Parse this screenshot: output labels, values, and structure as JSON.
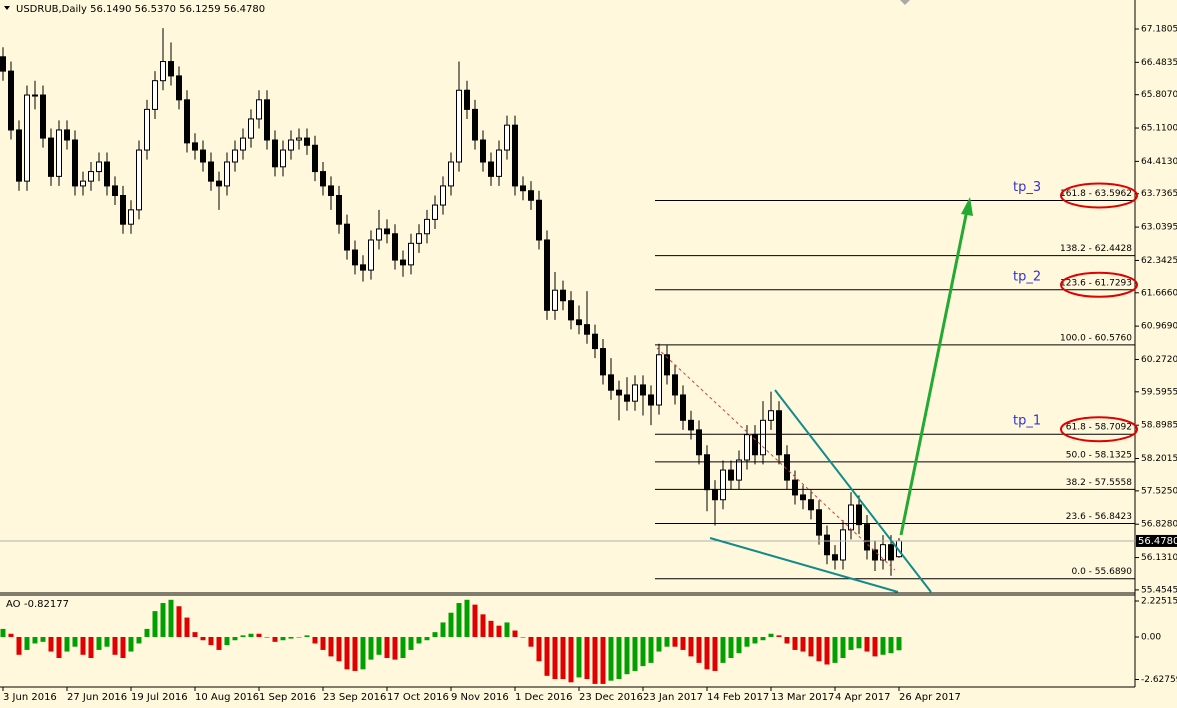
{
  "chart_data": [
    {
      "type": "candlestick",
      "title": "USDRUB,Daily  56.1490 56.5370 56.1259 56.4780",
      "categories": [
        "3 Jun 2016",
        null,
        null,
        null,
        null,
        null,
        null,
        null,
        "27 Jun 2016",
        null,
        null,
        null,
        null,
        null,
        null,
        null,
        "19 Jul 2016",
        null,
        null,
        null,
        null,
        null,
        null,
        null,
        "10 Aug 2016",
        null,
        null,
        null,
        null,
        null,
        null,
        null,
        "1 Sep 2016",
        null,
        null,
        null,
        null,
        null,
        null,
        null,
        "23 Sep 2016",
        null,
        null,
        null,
        null,
        null,
        null,
        null,
        "17 Oct 2016",
        null,
        null,
        null,
        null,
        null,
        null,
        null,
        "9 Nov 2016",
        null,
        null,
        null,
        null,
        null,
        null,
        null,
        "1 Dec 2016",
        null,
        null,
        null,
        null,
        null,
        null,
        null,
        "23 Dec 2016",
        null,
        null,
        null,
        null,
        null,
        null,
        null,
        "23 Jan 2017",
        null,
        null,
        null,
        null,
        null,
        null,
        null,
        "14 Feb 2017",
        null,
        null,
        null,
        null,
        null,
        null,
        null,
        "13 Mar 2017",
        null,
        null,
        null,
        null,
        null,
        null,
        null,
        "4 Apr 2017",
        null,
        null,
        null,
        null,
        null,
        null,
        null,
        "26 Apr 2017"
      ],
      "ohlc": [
        [
          66.6,
          66.8,
          66.1,
          66.3
        ],
        [
          66.3,
          66.5,
          64.87,
          65.07
        ],
        [
          65.07,
          65.27,
          63.8,
          64.0
        ],
        [
          64.0,
          66.0,
          63.8,
          65.8
        ],
        [
          65.8,
          66.1,
          65.5,
          65.8
        ],
        [
          65.8,
          66.0,
          64.7,
          64.9
        ],
        [
          64.9,
          65.1,
          63.9,
          64.1
        ],
        [
          64.1,
          65.27,
          63.9,
          65.07
        ],
        [
          65.07,
          65.27,
          64.66,
          64.86
        ],
        [
          64.86,
          65.06,
          63.7,
          63.9
        ],
        [
          63.9,
          64.2,
          63.7,
          64.0
        ],
        [
          64.0,
          64.4,
          63.8,
          64.2
        ],
        [
          64.2,
          64.6,
          64.0,
          64.4
        ],
        [
          64.4,
          64.6,
          63.7,
          63.9
        ],
        [
          63.9,
          64.1,
          63.5,
          63.7
        ],
        [
          63.7,
          63.9,
          62.9,
          63.1
        ],
        [
          63.1,
          63.6,
          62.9,
          63.4
        ],
        [
          63.4,
          64.85,
          63.2,
          64.65
        ],
        [
          64.65,
          65.7,
          64.45,
          65.5
        ],
        [
          65.5,
          66.3,
          65.3,
          66.1
        ],
        [
          66.1,
          67.2,
          65.9,
          66.5
        ],
        [
          66.5,
          66.9,
          66.0,
          66.2
        ],
        [
          66.2,
          66.4,
          65.5,
          65.7
        ],
        [
          65.7,
          65.9,
          64.6,
          64.8
        ],
        [
          64.8,
          65.0,
          64.45,
          64.65
        ],
        [
          64.65,
          64.85,
          64.2,
          64.4
        ],
        [
          64.4,
          64.6,
          63.8,
          64.0
        ],
        [
          64.0,
          64.2,
          63.4,
          63.9
        ],
        [
          63.9,
          64.6,
          63.7,
          64.4
        ],
        [
          64.4,
          64.85,
          64.2,
          64.65
        ],
        [
          64.65,
          65.1,
          64.45,
          64.9
        ],
        [
          64.9,
          65.5,
          64.7,
          65.3
        ],
        [
          65.3,
          65.9,
          65.1,
          65.7
        ],
        [
          65.7,
          65.9,
          64.66,
          64.86
        ],
        [
          64.86,
          65.06,
          64.1,
          64.3
        ],
        [
          64.3,
          64.85,
          64.1,
          64.65
        ],
        [
          64.65,
          65.06,
          64.45,
          64.86
        ],
        [
          64.86,
          65.1,
          64.66,
          64.9
        ],
        [
          64.9,
          65.1,
          64.55,
          64.75
        ],
        [
          64.75,
          64.95,
          64.0,
          64.2
        ],
        [
          64.2,
          64.4,
          63.7,
          63.9
        ],
        [
          63.9,
          64.1,
          63.4,
          63.7
        ],
        [
          63.7,
          63.9,
          62.9,
          63.1
        ],
        [
          63.1,
          63.3,
          62.36,
          62.56
        ],
        [
          62.56,
          62.76,
          62.05,
          62.25
        ],
        [
          62.25,
          62.45,
          61.9,
          62.14
        ],
        [
          62.14,
          62.97,
          61.94,
          62.77
        ],
        [
          62.77,
          63.4,
          62.57,
          63.0
        ],
        [
          63.0,
          63.2,
          62.7,
          62.9
        ],
        [
          62.9,
          63.1,
          62.15,
          62.35
        ],
        [
          62.35,
          62.55,
          62.0,
          62.25
        ],
        [
          62.25,
          62.9,
          62.05,
          62.7
        ],
        [
          62.7,
          63.1,
          62.5,
          62.9
        ],
        [
          62.9,
          63.4,
          62.7,
          63.2
        ],
        [
          63.2,
          63.7,
          63.0,
          63.5
        ],
        [
          63.5,
          64.1,
          63.3,
          63.9
        ],
        [
          63.9,
          64.6,
          63.7,
          64.4
        ],
        [
          64.4,
          66.5,
          64.2,
          65.9
        ],
        [
          65.9,
          66.1,
          65.3,
          65.5
        ],
        [
          65.5,
          65.7,
          64.66,
          64.86
        ],
        [
          64.86,
          65.06,
          64.2,
          64.4
        ],
        [
          64.4,
          64.6,
          63.9,
          64.1
        ],
        [
          64.1,
          64.85,
          63.9,
          64.65
        ],
        [
          64.65,
          65.37,
          64.45,
          65.17
        ],
        [
          65.17,
          65.37,
          63.7,
          63.9
        ],
        [
          63.9,
          64.1,
          63.6,
          63.8
        ],
        [
          63.8,
          64.0,
          63.4,
          63.6
        ],
        [
          63.6,
          63.8,
          62.57,
          62.77
        ],
        [
          62.77,
          62.97,
          61.1,
          61.3
        ],
        [
          61.3,
          62.1,
          61.1,
          61.72
        ],
        [
          61.72,
          61.92,
          61.3,
          61.5
        ],
        [
          61.5,
          61.7,
          60.9,
          61.1
        ],
        [
          61.1,
          61.4,
          60.8,
          61.0
        ],
        [
          61.0,
          61.7,
          60.6,
          60.8
        ],
        [
          60.8,
          61.0,
          60.3,
          60.5
        ],
        [
          60.5,
          60.7,
          59.75,
          59.95
        ],
        [
          59.95,
          60.3,
          59.43,
          59.63
        ],
        [
          59.63,
          59.83,
          59.0,
          59.53
        ],
        [
          59.53,
          59.9,
          59.2,
          59.4
        ],
        [
          59.4,
          59.94,
          59.2,
          59.74
        ],
        [
          59.74,
          59.94,
          59.1,
          59.53
        ],
        [
          59.53,
          59.73,
          58.9,
          59.32
        ],
        [
          59.32,
          60.6,
          59.12,
          60.37
        ],
        [
          60.37,
          60.57,
          59.75,
          59.95
        ],
        [
          59.95,
          60.15,
          59.33,
          59.53
        ],
        [
          59.53,
          59.73,
          58.8,
          59.0
        ],
        [
          59.0,
          59.2,
          58.6,
          58.8
        ],
        [
          58.8,
          59.0,
          58.08,
          58.28
        ],
        [
          58.28,
          58.48,
          57.1,
          57.55
        ],
        [
          57.55,
          57.75,
          56.8,
          57.34
        ],
        [
          57.34,
          58.16,
          57.14,
          57.96
        ],
        [
          57.96,
          58.16,
          57.55,
          57.75
        ],
        [
          57.75,
          58.37,
          57.55,
          58.17
        ],
        [
          58.17,
          58.9,
          57.97,
          58.7
        ],
        [
          58.7,
          58.9,
          58.08,
          58.28
        ],
        [
          58.28,
          59.4,
          58.08,
          59.0
        ],
        [
          59.0,
          59.6,
          58.8,
          59.2
        ],
        [
          59.2,
          59.4,
          58.08,
          58.28
        ],
        [
          58.28,
          58.48,
          57.55,
          57.75
        ],
        [
          57.75,
          57.95,
          57.24,
          57.44
        ],
        [
          57.44,
          57.64,
          57.14,
          57.34
        ],
        [
          57.34,
          57.54,
          56.93,
          57.13
        ],
        [
          57.13,
          57.33,
          56.4,
          56.6
        ],
        [
          56.6,
          56.8,
          55.99,
          56.19
        ],
        [
          56.19,
          56.39,
          55.88,
          56.08
        ],
        [
          56.08,
          56.91,
          55.88,
          56.71
        ],
        [
          56.71,
          57.5,
          56.51,
          57.23
        ],
        [
          57.23,
          57.43,
          56.62,
          56.82
        ],
        [
          56.82,
          57.02,
          56.09,
          56.29
        ],
        [
          56.29,
          56.49,
          55.85,
          56.08
        ],
        [
          56.08,
          56.6,
          55.88,
          56.4
        ],
        [
          56.4,
          56.6,
          55.75,
          56.08
        ],
        [
          56.149,
          56.537,
          56.1259,
          56.478
        ]
      ],
      "up_color": "#ffffff",
      "down_color": "#000000",
      "ylim": [
        55.39,
        67.745
      ],
      "yticks": [
        67.1805,
        66.4835,
        {
          "value": 65.807,
          "label": "65.8070"
        },
        {
          "value": 65.11,
          "label": "65.1100"
        },
        {
          "value": 64.413,
          "label": "64.4130"
        },
        63.7365,
        63.0395,
        62.3425,
        {
          "value": 61.666,
          "label": "61.6660"
        },
        {
          "value": 60.969,
          "label": "60.9690"
        },
        {
          "value": 60.272,
          "label": "60.2720"
        },
        59.5955,
        58.8985,
        58.2015,
        {
          "value": 57.525,
          "label": "57.5250"
        },
        {
          "value": 56.828,
          "label": "56.8280"
        },
        {
          "value": 56.131,
          "label": "56.1310"
        },
        55.4545
      ],
      "last_price": {
        "value": 56.478,
        "label": "56.4780"
      },
      "fib_levels": [
        {
          "value": 63.5962,
          "label": "161.8 - 63.5962",
          "target": "tp_3"
        },
        {
          "value": 62.4428,
          "label": "138.2 - 62.4428"
        },
        {
          "value": 61.7293,
          "label": "123.6 - 61.7293",
          "target": "tp_2"
        },
        {
          "value": 60.576,
          "label": "100.0 - 60.5760"
        },
        {
          "value": 58.7092,
          "label": "61.8 - 58.7092",
          "target": "tp_1"
        },
        {
          "value": 58.1325,
          "label": "50.0 - 58.1325"
        },
        {
          "value": 57.5558,
          "label": "38.2 - 57.5558"
        },
        {
          "value": 56.8423,
          "label": "23.6 - 56.8423"
        },
        {
          "value": 55.689,
          "label": "0.0 - 55.6890"
        }
      ]
    },
    {
      "type": "bar",
      "title": "AO",
      "values": [
        0.5,
        0.2,
        -1.1,
        -0.8,
        -0.4,
        -0.3,
        -0.9,
        -1.3,
        -0.9,
        -0.6,
        -1.1,
        -1.3,
        -0.8,
        -0.6,
        -1.1,
        -1.3,
        -0.9,
        -0.4,
        0.5,
        1.6,
        2.1,
        2.3,
        1.9,
        1.2,
        0.3,
        -0.2,
        -0.5,
        -0.8,
        -0.5,
        -0.2,
        0.1,
        0.2,
        0.2,
        0.0,
        -0.3,
        -0.2,
        -0.1,
        0.0,
        0.1,
        -0.4,
        -0.8,
        -1.2,
        -1.5,
        -2.0,
        -2.1,
        -2.0,
        -1.4,
        -1.1,
        -1.3,
        -1.4,
        -1.3,
        -0.8,
        -0.4,
        -0.2,
        0.3,
        0.9,
        1.5,
        2.1,
        2.3,
        2.0,
        1.4,
        1.0,
        0.7,
        0.9,
        0.4,
        0.0,
        -0.6,
        -1.5,
        -2.4,
        -2.6,
        -2.6,
        -2.8,
        -2.5,
        -2.6,
        -2.9,
        -2.9,
        -2.7,
        -2.6,
        -2.3,
        -2.1,
        -1.8,
        -1.6,
        -0.9,
        -0.6,
        -0.6,
        -0.8,
        -1.2,
        -1.6,
        -2.0,
        -2.1,
        -1.6,
        -1.3,
        -1.0,
        -0.6,
        -0.4,
        -0.2,
        0.2,
        0.1,
        -0.4,
        -0.8,
        -0.9,
        -1.2,
        -1.5,
        -1.7,
        -1.6,
        -1.3,
        -0.8,
        -0.7,
        -0.9,
        -1.2,
        -1.1,
        -1.0,
        -0.82177
      ],
      "up_color": "#00a000",
      "down_color": "#e00000",
      "ylim": [
        -3.03,
        2.596
      ],
      "yticks": [
        2.22515,
        {
          "value": 0,
          "label": "0.00"
        },
        -2.62759
      ]
    }
  ]
}
